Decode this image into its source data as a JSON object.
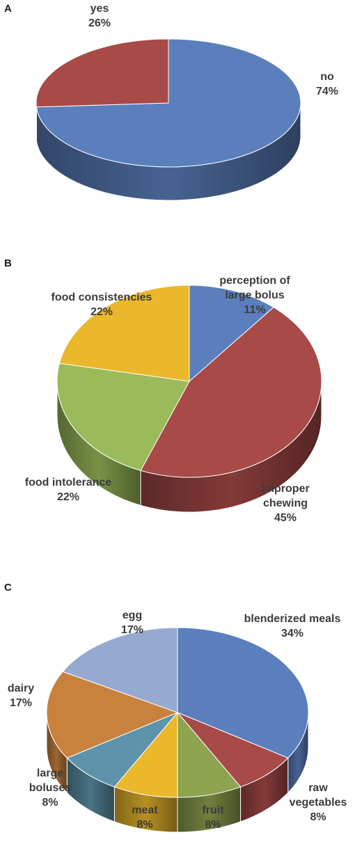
{
  "chart_data": [
    {
      "panel": "A",
      "type": "pie",
      "slices": [
        {
          "label": "no",
          "value": 74,
          "display": "74%",
          "color": "#5b7fbd"
        },
        {
          "label": "yes",
          "value": 26,
          "display": "26%",
          "color": "#a84a48"
        }
      ]
    },
    {
      "panel": "B",
      "type": "pie",
      "slices": [
        {
          "label": "perception of large bolus",
          "value": 11,
          "display": "11%",
          "color": "#5b7fbd"
        },
        {
          "label": "improper chewing",
          "value": 45,
          "display": "45%",
          "color": "#a84a48"
        },
        {
          "label": "food intolerance",
          "value": 22,
          "display": "22%",
          "color": "#9bba59"
        },
        {
          "label": "food consistencies",
          "value": 22,
          "display": "22%",
          "color": "#ebb82c"
        }
      ]
    },
    {
      "panel": "C",
      "type": "pie",
      "slices": [
        {
          "label": "blenderized meals",
          "value": 34,
          "display": "34%",
          "color": "#5b7fbd"
        },
        {
          "label": "raw vegetables",
          "value": 8,
          "display": "8%",
          "color": "#a84a48"
        },
        {
          "label": "fruit",
          "value": 8,
          "display": "8%",
          "color": "#8ea44f"
        },
        {
          "label": "meat",
          "value": 8,
          "display": "8%",
          "color": "#ebb82c"
        },
        {
          "label": "large boluses",
          "value": 8,
          "display": "8%",
          "color": "#5d93ab"
        },
        {
          "label": "dairy",
          "value": 17,
          "display": "17%",
          "color": "#c8823d"
        },
        {
          "label": "egg",
          "value": 17,
          "display": "17%",
          "color": "#96a9cf"
        }
      ]
    }
  ]
}
